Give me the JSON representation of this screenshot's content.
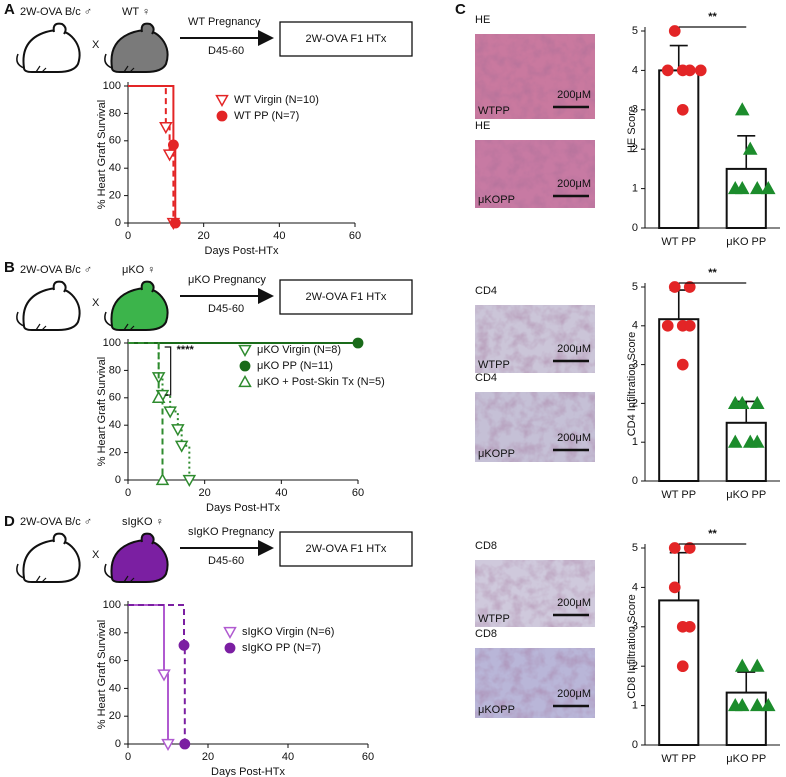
{
  "panels": [
    "A",
    "B",
    "C",
    "D"
  ],
  "schematics": [
    {
      "donor": "2W-OVA B/c ♂",
      "cross": "X",
      "recipient": "WT ♀",
      "arrow_label": "WT Pregnancy",
      "arrow_sub": "D45-60",
      "box": "2W-OVA F1 HTx",
      "color": "#e32526",
      "mouse_color": "#7a7a7a"
    },
    {
      "donor": "2W-OVA B/c ♂",
      "cross": "X",
      "recipient": "μKO ♀",
      "arrow_label": "μKO Pregnancy",
      "arrow_sub": "D45-60",
      "box": "2W-OVA F1 HTx",
      "color": "#1c7a1c",
      "mouse_color": "#3cb44b"
    },
    {
      "donor": "2W-OVA B/c ♂",
      "cross": "X",
      "recipient": "sIgKO ♀",
      "arrow_label": "sIgKO Pregnancy",
      "arrow_sub": "D45-60",
      "box": "2W-OVA F1 HTx",
      "color": "#8a2aa8",
      "mouse_color": "#7b1fa2"
    }
  ],
  "images": [
    {
      "title": "HE",
      "label": "WTPP",
      "scale": "200μM",
      "color": "#c9799f"
    },
    {
      "title": "HE",
      "label": "μKOPP",
      "scale": "200μM",
      "color": "#c77aa3"
    },
    {
      "title": "CD4",
      "label": "WTPP",
      "scale": "200μM",
      "color": "#cbc5d8"
    },
    {
      "title": "CD4",
      "label": "μKOPP",
      "scale": "200μM",
      "color": "#c5c0d6"
    },
    {
      "title": "CD8",
      "label": "WTPP",
      "scale": "200μM",
      "color": "#cfc9dc"
    },
    {
      "title": "CD8",
      "label": "μKOPP",
      "scale": "200μM",
      "color": "#b9b6d8"
    }
  ],
  "chart_data": [
    {
      "type": "survival",
      "xlabel": "Days Post-HTx",
      "ylabel": "% Heart Graft Survival",
      "xlim": [
        0,
        60
      ],
      "xticks": [
        0,
        20,
        40,
        60
      ],
      "ylim": [
        0,
        100
      ],
      "yticks": [
        0,
        20,
        40,
        60,
        80,
        100
      ],
      "series": [
        {
          "name": "WT Virgin (N=10)",
          "color": "#e32526",
          "line": "dashed",
          "marker": "triangle-down",
          "x": [
            0,
            10,
            11,
            12
          ],
          "values": [
            100,
            70,
            50,
            0
          ]
        },
        {
          "name": "WT PP (N=7)",
          "color": "#e32526",
          "line": "solid",
          "marker": "circle",
          "x": [
            0,
            12,
            12.5
          ],
          "values": [
            100,
            57,
            0
          ]
        }
      ]
    },
    {
      "type": "survival",
      "xlabel": "Days Post-HTx",
      "ylabel": "% Heart Graft Survival",
      "annotation": "****",
      "xlim": [
        0,
        60
      ],
      "xticks": [
        0,
        20,
        40,
        60
      ],
      "ylim": [
        0,
        100
      ],
      "yticks": [
        0,
        20,
        40,
        60,
        80,
        100
      ],
      "series": [
        {
          "name": "μKO Virgin (N=8)",
          "color": "#2e8b2e",
          "line": "dotted",
          "marker": "triangle-down",
          "x": [
            0,
            8,
            9,
            11,
            13,
            14,
            16
          ],
          "values": [
            100,
            75,
            62,
            50,
            37,
            25,
            0
          ]
        },
        {
          "name": "μKO PP (N=11)",
          "color": "#1a6b1a",
          "line": "solid",
          "marker": "circle",
          "x": [
            0,
            60
          ],
          "values": [
            100,
            100
          ]
        },
        {
          "name": "μKO + Post-Skin Tx (N=5)",
          "color": "#2e8b2e",
          "line": "dashed",
          "marker": "triangle-up",
          "x": [
            0,
            8,
            9
          ],
          "values": [
            100,
            60,
            0
          ]
        }
      ]
    },
    {
      "type": "survival",
      "xlabel": "Days Post-HTx",
      "ylabel": "% Heart Graft Survival",
      "xlim": [
        0,
        60
      ],
      "xticks": [
        0,
        20,
        40,
        60
      ],
      "ylim": [
        0,
        100
      ],
      "yticks": [
        0,
        20,
        40,
        60,
        80,
        100
      ],
      "series": [
        {
          "name": "sIgKO Virgin (N=6)",
          "color": "#b05ad0",
          "line": "solid",
          "marker": "triangle-down",
          "x": [
            0,
            9,
            10
          ],
          "values": [
            100,
            50,
            0
          ]
        },
        {
          "name": "sIgKO PP (N=7)",
          "color": "#7b1fa2",
          "line": "dashed",
          "marker": "circle",
          "x": [
            0,
            14,
            14.2
          ],
          "values": [
            100,
            71,
            0
          ]
        }
      ]
    },
    {
      "type": "bar",
      "ylabel": "HE Score",
      "significance": "**",
      "categories": [
        "WT PP",
        "μKO PP"
      ],
      "values": [
        4.0,
        1.5
      ],
      "errors": [
        0.63,
        0.84
      ],
      "colors": [
        "#e32526",
        "#1c8c2c"
      ],
      "markers": [
        "circle",
        "triangle-up"
      ],
      "points": [
        [
          5,
          4,
          4,
          4,
          4,
          3
        ],
        [
          3,
          2,
          1,
          1,
          1,
          1
        ]
      ],
      "ylim": [
        0,
        5
      ],
      "yticks": [
        0,
        1,
        2,
        3,
        4,
        5
      ]
    },
    {
      "type": "bar",
      "ylabel": "CD4 Infiltration Score",
      "significance": "**",
      "categories": [
        "WT PP",
        "μKO PP"
      ],
      "values": [
        4.17,
        1.5
      ],
      "errors": [
        0.75,
        0.55
      ],
      "colors": [
        "#e32526",
        "#1c8c2c"
      ],
      "markers": [
        "circle",
        "triangle-up"
      ],
      "points": [
        [
          5,
          4,
          4,
          4,
          5,
          3
        ],
        [
          2,
          2,
          2,
          1,
          1,
          1
        ]
      ],
      "ylim": [
        0,
        5
      ],
      "yticks": [
        0,
        1,
        2,
        3,
        4,
        5
      ]
    },
    {
      "type": "bar",
      "ylabel": "CD8 Infiltration Score",
      "significance": "**",
      "categories": [
        "WT PP",
        "μKO PP"
      ],
      "values": [
        3.67,
        1.33
      ],
      "errors": [
        1.21,
        0.52
      ],
      "colors": [
        "#e32526",
        "#1c8c2c"
      ],
      "markers": [
        "circle",
        "triangle-up"
      ],
      "points": [
        [
          5,
          5,
          4,
          3,
          3,
          2
        ],
        [
          2,
          2,
          1,
          1,
          1,
          1
        ]
      ],
      "ylim": [
        0,
        5
      ],
      "yticks": [
        0,
        1,
        2,
        3,
        4,
        5
      ]
    }
  ]
}
